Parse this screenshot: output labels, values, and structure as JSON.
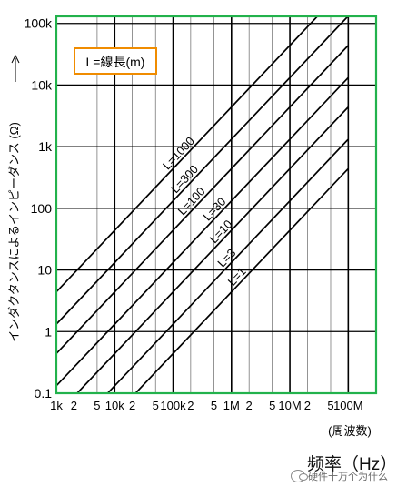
{
  "chart_data": {
    "type": "line",
    "x": [
      1000,
      100000000
    ],
    "xlog": true,
    "ylog": true,
    "xlim": [
      1000,
      300000000
    ],
    "ylim": [
      0.1,
      130000
    ],
    "x_ticks": [
      {
        "value": 1000,
        "label": "1k"
      },
      {
        "value": 2000,
        "label": "2"
      },
      {
        "value": 5000,
        "label": "5"
      },
      {
        "value": 10000,
        "label": "10k"
      },
      {
        "value": 20000,
        "label": "2"
      },
      {
        "value": 50000,
        "label": "5"
      },
      {
        "value": 100000,
        "label": "100k"
      },
      {
        "value": 200000,
        "label": "2"
      },
      {
        "value": 500000,
        "label": "5"
      },
      {
        "value": 1000000,
        "label": "1M"
      },
      {
        "value": 2000000,
        "label": "2"
      },
      {
        "value": 5000000,
        "label": "5"
      },
      {
        "value": 10000000,
        "label": "10M"
      },
      {
        "value": 20000000,
        "label": "2"
      },
      {
        "value": 50000000,
        "label": "5"
      },
      {
        "value": 100000000,
        "label": "100M"
      }
    ],
    "y_ticks": [
      {
        "value": 0.1,
        "label": "0.1"
      },
      {
        "value": 1,
        "label": "1"
      },
      {
        "value": 10,
        "label": "10"
      },
      {
        "value": 100,
        "label": "100"
      },
      {
        "value": 1000,
        "label": "1k"
      },
      {
        "value": 10000,
        "label": "10k"
      },
      {
        "value": 100000,
        "label": "100k"
      }
    ],
    "xlabel_unit": "(周波数)",
    "ylabel": "インダクタンスによるインピーダンス (Ω)",
    "legend_box": "L=線長(m)",
    "grid": true,
    "series": [
      {
        "name": "L=1000",
        "values": [
          4.4,
          440000
        ]
      },
      {
        "name": "L=300",
        "values": [
          1.32,
          132000
        ]
      },
      {
        "name": "L=100",
        "values": [
          0.44,
          44000
        ]
      },
      {
        "name": "L=30",
        "values": [
          0.132,
          13200
        ]
      },
      {
        "name": "L=10",
        "values": [
          0.044,
          4400
        ]
      },
      {
        "name": "L=3",
        "values": [
          0.0132,
          1320
        ]
      },
      {
        "name": "L=1",
        "values": [
          0.0044,
          440
        ]
      }
    ],
    "colors": {
      "frame": "#22b24c",
      "legend_border": "#f08c00",
      "lines": "#000000",
      "grid": "#000000"
    }
  },
  "footer": {
    "title": "频率（Hz）"
  },
  "watermark": {
    "text": "硬件十万个为什么",
    "icon": "chat-bubble-icon"
  }
}
